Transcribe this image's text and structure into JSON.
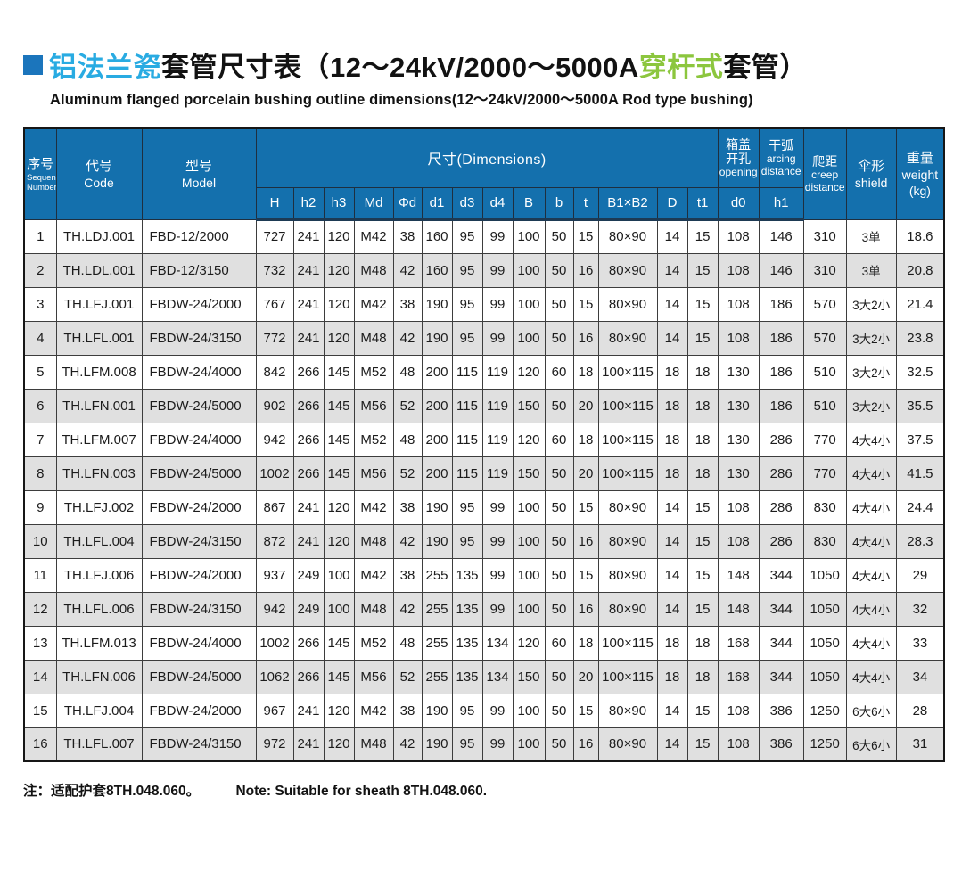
{
  "colors": {
    "header-blue": "#1470ad",
    "title-cyan": "#29abe2",
    "title-green": "#8cc63e",
    "bullet-blue": "#1b75bc",
    "row-gray": "#e0e0e0",
    "grid-line": "#3d3d3d"
  },
  "title": {
    "zh_cyan": "铝法兰瓷",
    "zh_mid": "套管尺寸表（12～24kV/2000～5000A",
    "zh_green": "穿杆式",
    "zh_end": "套管）",
    "subtitle": "Aluminum flanged porcelain bushing outline dimensions(12～24kV/2000～5000A  Rod type bushing)"
  },
  "table": {
    "header": {
      "seq_zh": "序号",
      "seq_en1": "Sequence",
      "seq_en2": "Number",
      "code_zh": "代号",
      "code_en": "Code",
      "model_zh": "型号",
      "model_en": "Model",
      "dimensions": "尺寸(Dimensions)",
      "dim_cols": [
        "H",
        "h2",
        "h3",
        "Md",
        "Φd",
        "d1",
        "d3",
        "d4",
        "B",
        "b",
        "t",
        "B1×B2",
        "D",
        "t1"
      ],
      "opening_zh1": "箱盖",
      "opening_zh2": "开孔",
      "opening_en": "opening",
      "opening_sub": "d0",
      "arcing_zh": "干弧",
      "arcing_en1": "arcing",
      "arcing_en2": "distance",
      "arcing_sub": "h1",
      "creep_zh": "爬距",
      "creep_en1": "creep",
      "creep_en2": "distance",
      "shield_zh": "伞形",
      "shield_en": "shield",
      "weight_zh": "重量",
      "weight_en": "weight",
      "weight_unit": "(kg)"
    },
    "col_keys": [
      "seq",
      "code",
      "model",
      "H",
      "h2",
      "h3",
      "Md",
      "Phid",
      "d1",
      "d3",
      "d4",
      "B",
      "b",
      "t",
      "B1xB2",
      "D",
      "t1",
      "d0",
      "h1",
      "creep",
      "shield",
      "weight"
    ],
    "rows": [
      [
        "1",
        "TH.LDJ.001",
        "FBD-12/2000",
        "727",
        "241",
        "120",
        "M42",
        "38",
        "160",
        "95",
        "99",
        "100",
        "50",
        "15",
        "80×90",
        "14",
        "15",
        "108",
        "146",
        "310",
        "3单",
        "18.6"
      ],
      [
        "2",
        "TH.LDL.001",
        "FBD-12/3150",
        "732",
        "241",
        "120",
        "M48",
        "42",
        "160",
        "95",
        "99",
        "100",
        "50",
        "16",
        "80×90",
        "14",
        "15",
        "108",
        "146",
        "310",
        "3单",
        "20.8"
      ],
      [
        "3",
        "TH.LFJ.001",
        "FBDW-24/2000",
        "767",
        "241",
        "120",
        "M42",
        "38",
        "190",
        "95",
        "99",
        "100",
        "50",
        "15",
        "80×90",
        "14",
        "15",
        "108",
        "186",
        "570",
        "3大2小",
        "21.4"
      ],
      [
        "4",
        "TH.LFL.001",
        "FBDW-24/3150",
        "772",
        "241",
        "120",
        "M48",
        "42",
        "190",
        "95",
        "99",
        "100",
        "50",
        "16",
        "80×90",
        "14",
        "15",
        "108",
        "186",
        "570",
        "3大2小",
        "23.8"
      ],
      [
        "5",
        "TH.LFM.008",
        "FBDW-24/4000",
        "842",
        "266",
        "145",
        "M52",
        "48",
        "200",
        "115",
        "119",
        "120",
        "60",
        "18",
        "100×115",
        "18",
        "18",
        "130",
        "186",
        "510",
        "3大2小",
        "32.5"
      ],
      [
        "6",
        "TH.LFN.001",
        "FBDW-24/5000",
        "902",
        "266",
        "145",
        "M56",
        "52",
        "200",
        "115",
        "119",
        "150",
        "50",
        "20",
        "100×115",
        "18",
        "18",
        "130",
        "186",
        "510",
        "3大2小",
        "35.5"
      ],
      [
        "7",
        "TH.LFM.007",
        "FBDW-24/4000",
        "942",
        "266",
        "145",
        "M52",
        "48",
        "200",
        "115",
        "119",
        "120",
        "60",
        "18",
        "100×115",
        "18",
        "18",
        "130",
        "286",
        "770",
        "4大4小",
        "37.5"
      ],
      [
        "8",
        "TH.LFN.003",
        "FBDW-24/5000",
        "1002",
        "266",
        "145",
        "M56",
        "52",
        "200",
        "115",
        "119",
        "150",
        "50",
        "20",
        "100×115",
        "18",
        "18",
        "130",
        "286",
        "770",
        "4大4小",
        "41.5"
      ],
      [
        "9",
        "TH.LFJ.002",
        "FBDW-24/2000",
        "867",
        "241",
        "120",
        "M42",
        "38",
        "190",
        "95",
        "99",
        "100",
        "50",
        "15",
        "80×90",
        "14",
        "15",
        "108",
        "286",
        "830",
        "4大4小",
        "24.4"
      ],
      [
        "10",
        "TH.LFL.004",
        "FBDW-24/3150",
        "872",
        "241",
        "120",
        "M48",
        "42",
        "190",
        "95",
        "99",
        "100",
        "50",
        "16",
        "80×90",
        "14",
        "15",
        "108",
        "286",
        "830",
        "4大4小",
        "28.3"
      ],
      [
        "11",
        "TH.LFJ.006",
        "FBDW-24/2000",
        "937",
        "249",
        "100",
        "M42",
        "38",
        "255",
        "135",
        "99",
        "100",
        "50",
        "15",
        "80×90",
        "14",
        "15",
        "148",
        "344",
        "1050",
        "4大4小",
        "29"
      ],
      [
        "12",
        "TH.LFL.006",
        "FBDW-24/3150",
        "942",
        "249",
        "100",
        "M48",
        "42",
        "255",
        "135",
        "99",
        "100",
        "50",
        "16",
        "80×90",
        "14",
        "15",
        "148",
        "344",
        "1050",
        "4大4小",
        "32"
      ],
      [
        "13",
        "TH.LFM.013",
        "FBDW-24/4000",
        "1002",
        "266",
        "145",
        "M52",
        "48",
        "255",
        "135",
        "134",
        "120",
        "60",
        "18",
        "100×115",
        "18",
        "18",
        "168",
        "344",
        "1050",
        "4大4小",
        "33"
      ],
      [
        "14",
        "TH.LFN.006",
        "FBDW-24/5000",
        "1062",
        "266",
        "145",
        "M56",
        "52",
        "255",
        "135",
        "134",
        "150",
        "50",
        "20",
        "100×115",
        "18",
        "18",
        "168",
        "344",
        "1050",
        "4大4小",
        "34"
      ],
      [
        "15",
        "TH.LFJ.004",
        "FBDW-24/2000",
        "967",
        "241",
        "120",
        "M42",
        "38",
        "190",
        "95",
        "99",
        "100",
        "50",
        "15",
        "80×90",
        "14",
        "15",
        "108",
        "386",
        "1250",
        "6大6小",
        "28"
      ],
      [
        "16",
        "TH.LFL.007",
        "FBDW-24/3150",
        "972",
        "241",
        "120",
        "M48",
        "42",
        "190",
        "95",
        "99",
        "100",
        "50",
        "16",
        "80×90",
        "14",
        "15",
        "108",
        "386",
        "1250",
        "6大6小",
        "31"
      ]
    ]
  },
  "note": {
    "zh": "注：适配护套8TH.048.060。",
    "en": "Note: Suitable for sheath 8TH.048.060."
  }
}
